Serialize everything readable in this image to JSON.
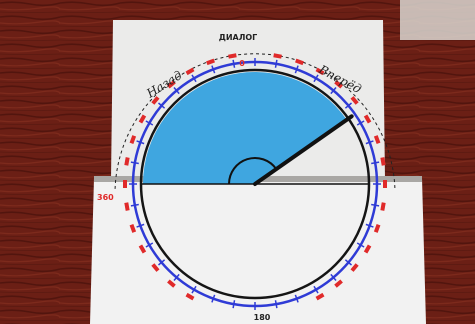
{
  "photo": {
    "subject": "paper protractor angle demonstrator on a wooden table",
    "colors": {
      "table": "#6b1f15",
      "table_grain": "#52150e",
      "table_highlight": "#8a3324",
      "paper": "#ebebea",
      "lower_card": "#f2f2f2",
      "angle_fill": "#3fa6e0",
      "arc_blue": "#2f3bd6",
      "arc_black": "#151515",
      "scale_red": "#e02a2a",
      "pointer": "#111111"
    }
  },
  "protractor": {
    "top_label": "ДИАЛОГ",
    "zero_mark": "0",
    "left_label": "Назад",
    "right_label": "Вперёд",
    "left_end_mark": "360",
    "bottom_label": "180",
    "angle_degrees": 55
  }
}
